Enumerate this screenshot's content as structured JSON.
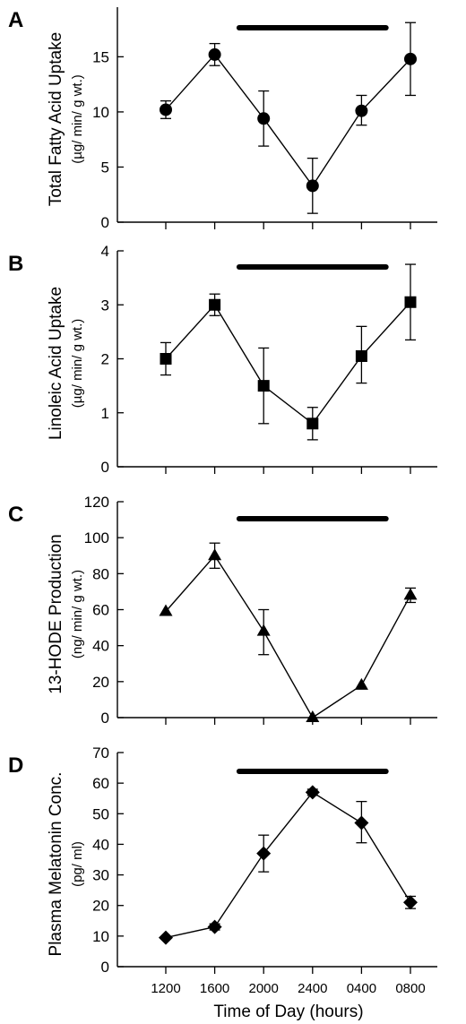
{
  "chart_data": [
    {
      "type": "line",
      "panel_label": "A",
      "ylabel_main": "Total Fatty Acid Uptake",
      "ylabel_unit": "(µg/ min/ g wt.)",
      "marker": "circle",
      "categories": [
        "1200",
        "1600",
        "2000",
        "2400",
        "0400",
        "0800"
      ],
      "values": [
        10.2,
        15.2,
        9.4,
        3.3,
        10.1,
        14.8
      ],
      "error_upper": [
        11.0,
        16.2,
        11.9,
        5.8,
        11.5,
        18.1
      ],
      "error_lower": [
        9.4,
        14.2,
        6.9,
        0.8,
        8.8,
        11.5
      ],
      "ylim": [
        0,
        19.5
      ],
      "yticks": [
        0,
        5,
        10,
        15
      ],
      "dark_period": [
        "1800",
        "0600"
      ]
    },
    {
      "type": "line",
      "panel_label": "B",
      "ylabel_main": "Linoleic Acid Uptake",
      "ylabel_unit": "(µg/ min/ g wt.)",
      "marker": "square",
      "categories": [
        "1200",
        "1600",
        "2000",
        "2400",
        "0400",
        "0800"
      ],
      "values": [
        2.0,
        3.0,
        1.5,
        0.8,
        2.05,
        3.05
      ],
      "error_upper": [
        2.3,
        3.2,
        2.2,
        1.1,
        2.6,
        3.75
      ],
      "error_lower": [
        1.7,
        2.8,
        0.8,
        0.5,
        1.55,
        2.35
      ],
      "ylim": [
        0,
        4
      ],
      "yticks": [
        0,
        1,
        2,
        3,
        4
      ],
      "dark_period": [
        "1800",
        "0600"
      ]
    },
    {
      "type": "line",
      "panel_label": "C",
      "ylabel_main": "13-HODE Production",
      "ylabel_unit": "(ng/ min/ g wt.)",
      "marker": "triangle",
      "categories": [
        "1200",
        "1600",
        "2000",
        "2400",
        "0400",
        "0800"
      ],
      "values": [
        59,
        90,
        48,
        0,
        18,
        68
      ],
      "error_upper": [
        59,
        97,
        60,
        0,
        18,
        72
      ],
      "error_lower": [
        59,
        83,
        35,
        0,
        18,
        64
      ],
      "ylim": [
        0,
        120
      ],
      "yticks": [
        0,
        20,
        40,
        60,
        80,
        100,
        120
      ],
      "dark_period": [
        "1800",
        "0600"
      ]
    },
    {
      "type": "line",
      "panel_label": "D",
      "ylabel_main": "Plasma Melatonin Conc.",
      "ylabel_unit": "(pg/ ml)",
      "marker": "diamond",
      "categories": [
        "1200",
        "1600",
        "2000",
        "2400",
        "0400",
        "0800"
      ],
      "values": [
        9.5,
        13,
        37,
        57,
        47,
        21
      ],
      "error_upper": [
        9.5,
        14,
        43,
        58,
        54,
        23
      ],
      "error_lower": [
        9.5,
        12,
        31,
        56,
        40.5,
        19
      ],
      "ylim": [
        0,
        70
      ],
      "yticks": [
        0,
        10,
        20,
        30,
        40,
        50,
        60,
        70
      ],
      "dark_period": [
        "1800",
        "0600"
      ],
      "xlabel": "Time of Day (hours)"
    }
  ]
}
